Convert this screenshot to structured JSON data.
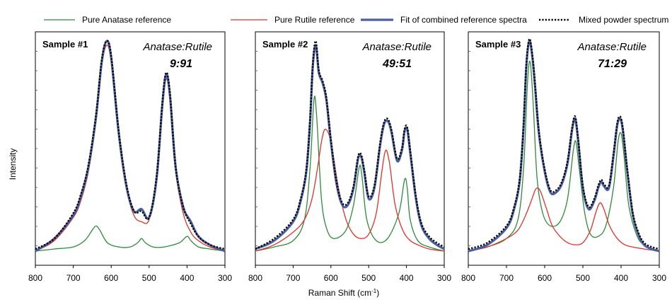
{
  "legend": [
    {
      "label": "Pure Anatase reference",
      "color": "#2e8b3a",
      "style": "solid"
    },
    {
      "label": "Pure Rutile reference",
      "color": "#e0312a",
      "style": "solid"
    },
    {
      "label": "Fit of combined reference spectra",
      "color": "#4a5f9e",
      "style": "thick"
    },
    {
      "label": "Mixed powder spectrum",
      "color": "#000000",
      "style": "dotted"
    }
  ],
  "colors": {
    "anatase": "#2e8b3a",
    "rutile": "#e0312a",
    "fit": "#4a5f9e",
    "mixed": "#000000"
  },
  "ylabel": "Intensity",
  "xlabel_main": "Raman Shift (cm",
  "xlabel_sup": "-1",
  "xlabel_end": ")",
  "ratio_label": "Anatase:Rutile",
  "chart_data": [
    {
      "type": "line",
      "title": "Sample #1",
      "ratio": "9:91",
      "x_axis": {
        "xlim": [
          800,
          300
        ],
        "reversed": true,
        "ticks": [
          800,
          700,
          600,
          500,
          400,
          300
        ]
      },
      "y_axis": {
        "label": "Intensity",
        "ylim": [
          0,
          1
        ],
        "tick_labels": false
      },
      "series": [
        {
          "name": "Pure Anatase reference",
          "key": "anatase",
          "x": [
            800,
            750,
            700,
            670,
            650,
            640,
            630,
            610,
            580,
            550,
            530,
            520,
            510,
            490,
            460,
            420,
            400,
            390,
            370,
            340,
            300
          ],
          "y": [
            0.0,
            0.01,
            0.02,
            0.05,
            0.1,
            0.12,
            0.1,
            0.04,
            0.02,
            0.02,
            0.04,
            0.06,
            0.04,
            0.02,
            0.02,
            0.04,
            0.07,
            0.05,
            0.02,
            0.01,
            0.0
          ]
        },
        {
          "name": "Pure Rutile reference",
          "key": "rutile",
          "x": [
            800,
            750,
            700,
            680,
            660,
            640,
            625,
            612,
            600,
            580,
            560,
            540,
            520,
            500,
            480,
            465,
            455,
            445,
            430,
            410,
            390,
            370,
            340,
            300
          ],
          "y": [
            0.0,
            0.05,
            0.16,
            0.24,
            0.38,
            0.62,
            0.88,
            0.98,
            0.9,
            0.55,
            0.3,
            0.17,
            0.14,
            0.15,
            0.34,
            0.68,
            0.82,
            0.72,
            0.38,
            0.18,
            0.09,
            0.05,
            0.02,
            0.0
          ]
        },
        {
          "name": "Fit of combined reference spectra",
          "key": "fit",
          "x": [
            800,
            750,
            700,
            680,
            660,
            640,
            625,
            612,
            600,
            580,
            560,
            540,
            520,
            500,
            480,
            465,
            455,
            445,
            430,
            410,
            390,
            370,
            340,
            300
          ],
          "y": [
            0.0,
            0.06,
            0.17,
            0.26,
            0.4,
            0.64,
            0.9,
            1.0,
            0.92,
            0.56,
            0.31,
            0.19,
            0.2,
            0.16,
            0.35,
            0.7,
            0.84,
            0.74,
            0.4,
            0.21,
            0.14,
            0.07,
            0.03,
            0.0
          ]
        },
        {
          "name": "Mixed powder spectrum",
          "key": "mixed",
          "x": [
            800,
            750,
            700,
            680,
            660,
            640,
            625,
            612,
            600,
            580,
            560,
            540,
            520,
            500,
            480,
            465,
            455,
            445,
            430,
            410,
            390,
            370,
            340,
            300
          ],
          "y": [
            0.01,
            0.06,
            0.18,
            0.27,
            0.41,
            0.65,
            0.91,
            1.0,
            0.93,
            0.57,
            0.32,
            0.19,
            0.19,
            0.16,
            0.36,
            0.71,
            0.85,
            0.75,
            0.4,
            0.21,
            0.13,
            0.07,
            0.03,
            0.01
          ]
        }
      ]
    },
    {
      "type": "line",
      "title": "Sample #2",
      "ratio": "49:51",
      "x_axis": {
        "xlim": [
          800,
          300
        ],
        "reversed": true,
        "ticks": [
          800,
          700,
          600,
          500,
          400,
          300
        ]
      },
      "y_axis": {
        "label": "Intensity",
        "ylim": [
          0,
          1
        ],
        "tick_labels": false
      },
      "series": [
        {
          "name": "Pure Anatase reference",
          "key": "anatase",
          "x": [
            800,
            750,
            700,
            670,
            655,
            645,
            638,
            625,
            610,
            590,
            560,
            540,
            525,
            518,
            505,
            480,
            450,
            420,
            405,
            398,
            390,
            370,
            340,
            300
          ],
          "y": [
            0.0,
            0.02,
            0.05,
            0.15,
            0.4,
            0.72,
            0.65,
            0.25,
            0.1,
            0.06,
            0.1,
            0.22,
            0.4,
            0.36,
            0.15,
            0.05,
            0.06,
            0.18,
            0.34,
            0.3,
            0.15,
            0.05,
            0.02,
            0.0
          ]
        },
        {
          "name": "Pure Rutile reference",
          "key": "rutile",
          "x": [
            800,
            750,
            700,
            670,
            650,
            635,
            625,
            615,
            600,
            580,
            560,
            540,
            520,
            500,
            480,
            465,
            455,
            445,
            430,
            410,
            390,
            370,
            340,
            300
          ],
          "y": [
            0.0,
            0.03,
            0.09,
            0.15,
            0.25,
            0.4,
            0.52,
            0.58,
            0.52,
            0.3,
            0.15,
            0.08,
            0.06,
            0.08,
            0.18,
            0.38,
            0.48,
            0.42,
            0.22,
            0.1,
            0.05,
            0.03,
            0.01,
            0.0
          ]
        },
        {
          "name": "Fit of combined reference spectra",
          "key": "fit",
          "x": [
            800,
            750,
            700,
            680,
            665,
            655,
            648,
            640,
            632,
            622,
            612,
            600,
            585,
            570,
            555,
            540,
            528,
            520,
            512,
            500,
            485,
            470,
            460,
            450,
            440,
            425,
            412,
            405,
            398,
            390,
            375,
            360,
            340,
            320,
            300
          ],
          "y": [
            0.01,
            0.05,
            0.14,
            0.24,
            0.38,
            0.62,
            0.88,
            0.98,
            0.85,
            0.8,
            0.72,
            0.52,
            0.32,
            0.22,
            0.22,
            0.3,
            0.44,
            0.45,
            0.38,
            0.25,
            0.3,
            0.5,
            0.6,
            0.62,
            0.57,
            0.43,
            0.48,
            0.57,
            0.58,
            0.47,
            0.25,
            0.12,
            0.06,
            0.03,
            0.01
          ]
        },
        {
          "name": "Mixed powder spectrum",
          "key": "mixed",
          "x": [
            800,
            750,
            700,
            680,
            665,
            655,
            648,
            640,
            632,
            622,
            612,
            600,
            585,
            570,
            555,
            540,
            528,
            520,
            512,
            500,
            485,
            470,
            460,
            450,
            440,
            425,
            412,
            405,
            398,
            390,
            375,
            360,
            340,
            320,
            300
          ],
          "y": [
            0.01,
            0.06,
            0.15,
            0.25,
            0.39,
            0.63,
            0.89,
            1.0,
            0.86,
            0.81,
            0.73,
            0.53,
            0.33,
            0.23,
            0.23,
            0.31,
            0.45,
            0.46,
            0.39,
            0.26,
            0.31,
            0.51,
            0.61,
            0.63,
            0.58,
            0.44,
            0.49,
            0.58,
            0.59,
            0.48,
            0.26,
            0.13,
            0.07,
            0.04,
            0.02
          ]
        }
      ]
    },
    {
      "type": "line",
      "title": "Sample #3",
      "ratio": "71:29",
      "x_axis": {
        "xlim": [
          800,
          300
        ],
        "reversed": true,
        "ticks": [
          800,
          700,
          600,
          500,
          400,
          300
        ]
      },
      "y_axis": {
        "label": "Intensity",
        "ylim": [
          0,
          1
        ],
        "tick_labels": false
      },
      "series": [
        {
          "name": "Pure Anatase reference",
          "key": "anatase",
          "x": [
            800,
            750,
            700,
            670,
            655,
            645,
            638,
            630,
            620,
            605,
            585,
            560,
            540,
            525,
            518,
            510,
            495,
            480,
            460,
            440,
            420,
            408,
            400,
            392,
            380,
            360,
            340,
            300
          ],
          "y": [
            0.0,
            0.02,
            0.06,
            0.15,
            0.4,
            0.8,
            0.9,
            0.7,
            0.35,
            0.18,
            0.12,
            0.14,
            0.25,
            0.48,
            0.52,
            0.4,
            0.18,
            0.08,
            0.07,
            0.12,
            0.3,
            0.52,
            0.56,
            0.45,
            0.22,
            0.08,
            0.03,
            0.0
          ]
        },
        {
          "name": "Pure Rutile reference",
          "key": "rutile",
          "x": [
            800,
            750,
            700,
            670,
            650,
            635,
            625,
            618,
            610,
            595,
            580,
            560,
            540,
            520,
            500,
            480,
            465,
            455,
            445,
            430,
            410,
            390,
            370,
            340,
            300
          ],
          "y": [
            0.0,
            0.02,
            0.06,
            0.1,
            0.17,
            0.24,
            0.29,
            0.3,
            0.28,
            0.2,
            0.12,
            0.07,
            0.04,
            0.03,
            0.04,
            0.1,
            0.19,
            0.23,
            0.2,
            0.12,
            0.06,
            0.03,
            0.02,
            0.01,
            0.0
          ]
        },
        {
          "name": "Fit of combined reference spectra",
          "key": "fit",
          "x": [
            800,
            750,
            700,
            680,
            665,
            655,
            648,
            640,
            632,
            625,
            615,
            600,
            585,
            570,
            555,
            540,
            528,
            520,
            512,
            500,
            485,
            470,
            460,
            452,
            445,
            432,
            420,
            410,
            402,
            395,
            385,
            370,
            355,
            340,
            320,
            300
          ],
          "y": [
            0.0,
            0.03,
            0.11,
            0.2,
            0.34,
            0.6,
            0.88,
            1.0,
            0.92,
            0.78,
            0.56,
            0.38,
            0.28,
            0.28,
            0.32,
            0.42,
            0.58,
            0.63,
            0.52,
            0.3,
            0.2,
            0.24,
            0.3,
            0.33,
            0.31,
            0.3,
            0.45,
            0.6,
            0.63,
            0.57,
            0.4,
            0.18,
            0.08,
            0.03,
            0.01,
            0.0
          ]
        },
        {
          "name": "Mixed powder spectrum",
          "key": "mixed",
          "x": [
            800,
            750,
            700,
            680,
            665,
            655,
            648,
            640,
            632,
            625,
            615,
            600,
            585,
            570,
            555,
            540,
            528,
            520,
            512,
            500,
            485,
            470,
            460,
            452,
            445,
            432,
            420,
            410,
            402,
            395,
            385,
            370,
            355,
            340,
            320,
            300
          ],
          "y": [
            0.01,
            0.04,
            0.12,
            0.21,
            0.35,
            0.61,
            0.89,
            1.01,
            0.93,
            0.79,
            0.57,
            0.39,
            0.29,
            0.29,
            0.33,
            0.43,
            0.59,
            0.64,
            0.53,
            0.31,
            0.21,
            0.25,
            0.31,
            0.34,
            0.32,
            0.31,
            0.46,
            0.61,
            0.64,
            0.58,
            0.41,
            0.19,
            0.09,
            0.04,
            0.02,
            0.01
          ]
        }
      ]
    }
  ]
}
